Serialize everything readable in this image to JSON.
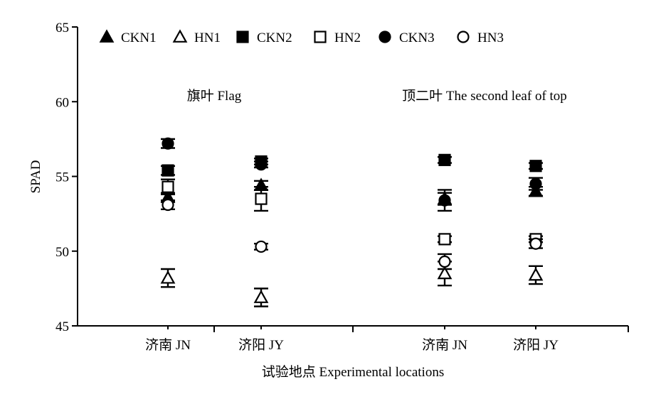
{
  "chart_data": {
    "type": "scatter",
    "ylabel": "SPAD",
    "xlabel": "试验地点 Experimental locations",
    "ylim": [
      45,
      65
    ],
    "yticks": [
      45,
      50,
      55,
      60,
      65
    ],
    "grid": false,
    "legend_position": "top-left",
    "panels": [
      {
        "title": "旗叶 Flag",
        "categories": [
          "济南 JN",
          "济阳 JY"
        ]
      },
      {
        "title": "顶二叶 The second leaf of top",
        "categories": [
          "济南 JN",
          "济阳 JY"
        ]
      }
    ],
    "series": [
      {
        "name": "CKN1",
        "marker": "triangle-filled",
        "values": [
          53.6,
          54.4,
          53.5,
          54.0
        ],
        "errors": [
          0.3,
          0.3,
          0.4,
          0.3
        ]
      },
      {
        "name": "HN1",
        "marker": "triangle-open",
        "values": [
          48.2,
          46.9,
          48.5,
          48.4
        ],
        "errors": [
          0.6,
          0.6,
          0.8,
          0.6
        ]
      },
      {
        "name": "CKN2",
        "marker": "square-filled",
        "values": [
          55.4,
          56.0,
          56.1,
          55.7
        ],
        "errors": [
          0.3,
          0.2,
          0.2,
          0.2
        ]
      },
      {
        "name": "HN2",
        "marker": "square-open",
        "values": [
          54.3,
          53.5,
          50.8,
          50.8
        ],
        "errors": [
          0.5,
          0.8,
          0.2,
          0.2
        ]
      },
      {
        "name": "CKN3",
        "marker": "circle-filled",
        "values": [
          57.2,
          55.8,
          53.4,
          54.5
        ],
        "errors": [
          0.3,
          0.2,
          0.7,
          0.4
        ]
      },
      {
        "name": "HN3",
        "marker": "circle-open",
        "values": [
          53.1,
          50.3,
          49.3,
          50.5
        ],
        "errors": [
          0.3,
          0.2,
          0.5,
          0.3
        ]
      }
    ]
  }
}
